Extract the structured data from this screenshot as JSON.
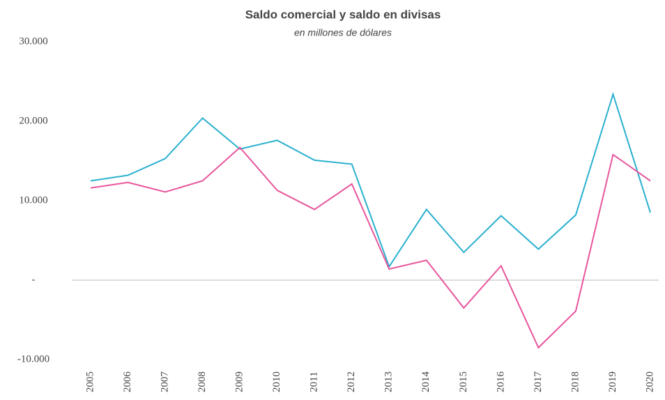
{
  "chart_data": {
    "type": "line",
    "title": "Saldo comercial y saldo en divisas",
    "subtitle": "en millones de dólares",
    "categories": [
      "2005",
      "2006",
      "2007",
      "2008",
      "2009",
      "2010",
      "2011",
      "2012",
      "2013",
      "2014",
      "2015",
      "2016",
      "2017",
      "2018",
      "2019",
      "2020"
    ],
    "series": [
      {
        "color": "#2ab0cf",
        "values": [
          12500,
          13200,
          15300,
          20400,
          16500,
          17600,
          15100,
          14600,
          1700,
          8900,
          3500,
          8100,
          3900,
          8200,
          23400,
          8500
        ]
      },
      {
        "color": "#e8559b",
        "values": [
          11600,
          12300,
          11100,
          12500,
          16700,
          11300,
          8900,
          12100,
          1400,
          2500,
          -3500,
          1800,
          -8500,
          -3900,
          15800,
          12500
        ]
      }
    ],
    "ylim": [
      -10000,
      30000
    ],
    "yticks": [
      {
        "value": 30000,
        "label": "30.000"
      },
      {
        "value": 20000,
        "label": "20.000"
      },
      {
        "value": 10000,
        "label": "10.000"
      },
      {
        "value": 0,
        "label": "-"
      },
      {
        "value": -10000,
        "label": "-10.000"
      }
    ],
    "grid": false
  }
}
